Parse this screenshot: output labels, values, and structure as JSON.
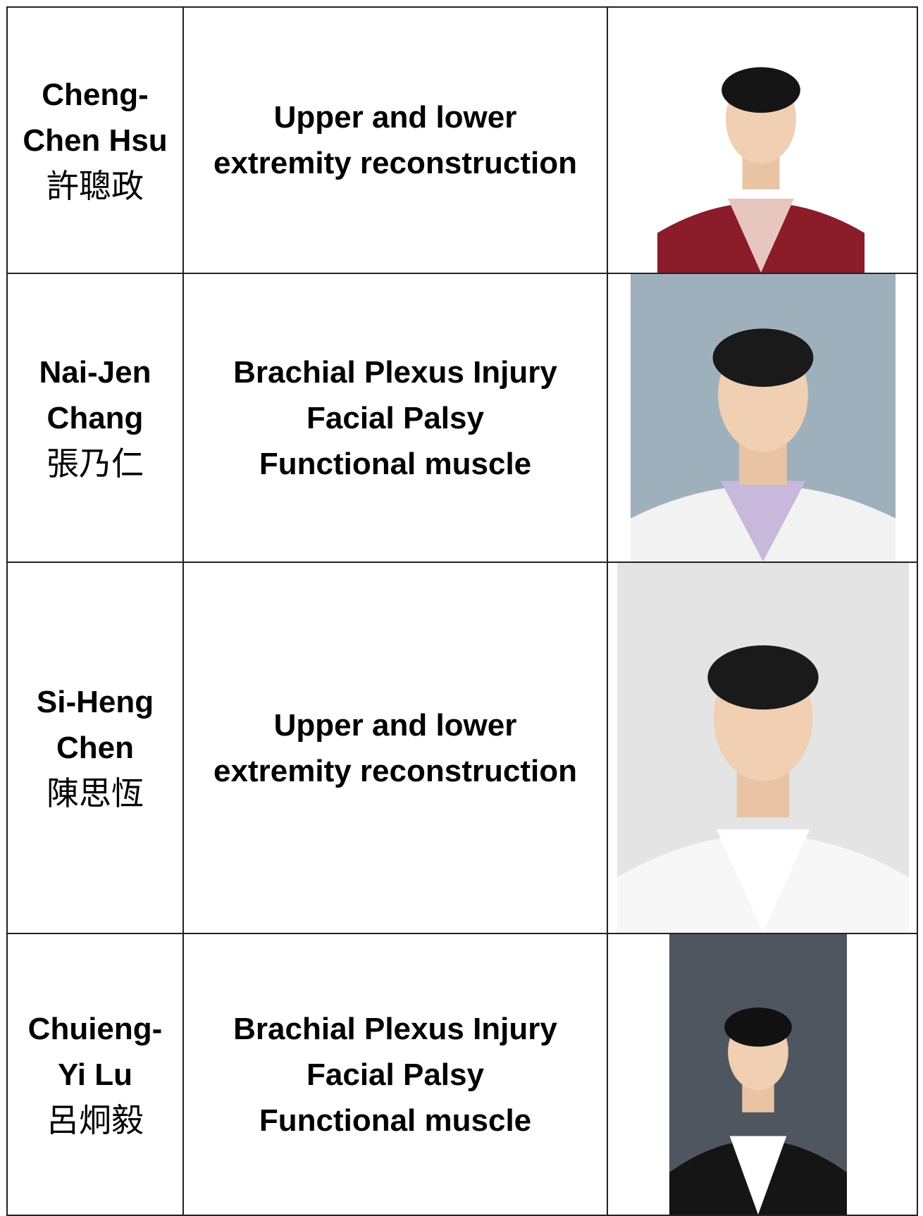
{
  "table": {
    "rows": [
      {
        "name": [
          "Cheng-",
          "Chen Hsu"
        ],
        "chinese_name": "許聰政",
        "specialty": [
          "Upper and lower",
          "extremity reconstruction"
        ]
      },
      {
        "name": [
          "Nai-Jen",
          "Chang"
        ],
        "chinese_name": "張乃仁",
        "specialty": [
          "Brachial Plexus Injury",
          "Facial Palsy",
          "Functional muscle"
        ]
      },
      {
        "name": [
          "Si-Heng",
          "Chen"
        ],
        "chinese_name": "陳思恆",
        "specialty": [
          "Upper and lower",
          "extremity reconstruction"
        ]
      },
      {
        "name": [
          "Chuieng-",
          "Yi Lu"
        ],
        "chinese_name": "呂炯毅",
        "specialty": [
          "Brachial Plexus Injury",
          "Facial Palsy",
          "Functional muscle"
        ]
      }
    ]
  }
}
